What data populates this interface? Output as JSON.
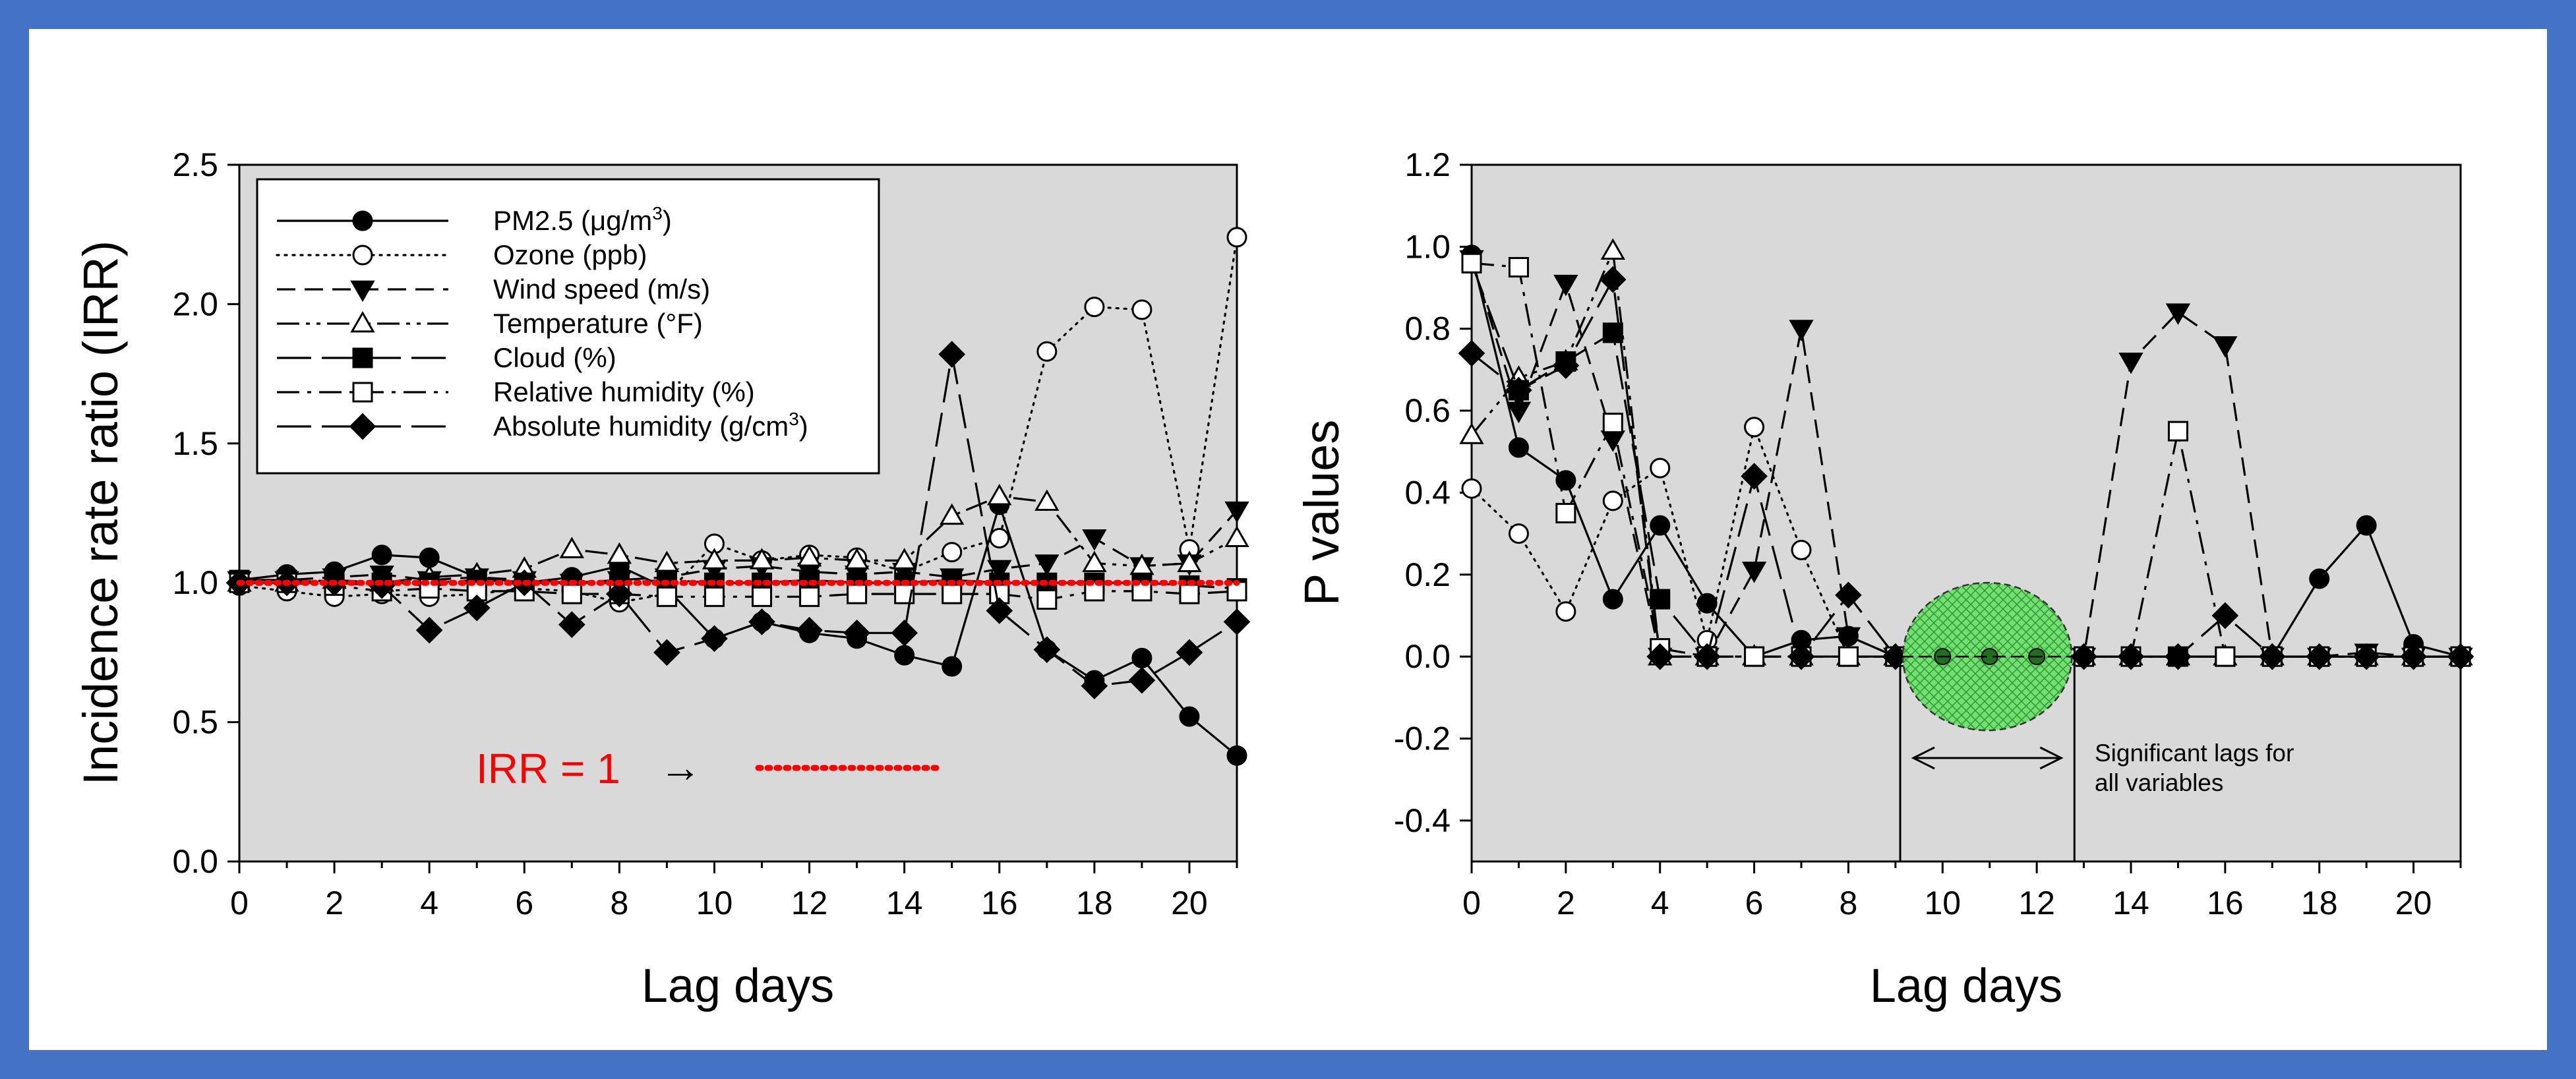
{
  "chart_data": [
    {
      "type": "line",
      "xlabel": "Lag days",
      "ylabel": "Incidence rate ratio (IRR)",
      "xlim": [
        0,
        21
      ],
      "ylim": [
        0,
        2.5
      ],
      "x_ticks": [
        0,
        2,
        4,
        6,
        8,
        10,
        12,
        14,
        16,
        18,
        20
      ],
      "y_ticks": [
        0.0,
        0.5,
        1.0,
        1.5,
        2.0,
        2.5
      ],
      "grid": false,
      "legend_position": "top-left",
      "x": [
        0,
        1,
        2,
        3,
        4,
        5,
        6,
        7,
        8,
        9,
        10,
        11,
        12,
        13,
        14,
        15,
        16,
        17,
        18,
        19,
        20,
        21
      ],
      "series": [
        {
          "name_main": "PM2.5 (μg/m",
          "name_sup": "3",
          "name_end": ")",
          "marker": "filled-circle",
          "dash": "solid",
          "values": [
            1.01,
            1.03,
            1.04,
            1.1,
            1.09,
            1.02,
            1.0,
            1.02,
            1.06,
            0.98,
            0.8,
            0.86,
            0.82,
            0.8,
            0.74,
            0.7,
            1.28,
            0.76,
            0.65,
            0.73,
            0.52,
            0.38
          ]
        },
        {
          "name_main": "Ozone (ppb)",
          "marker": "open-circle",
          "dash": "dotted",
          "values": [
            0.99,
            0.97,
            0.95,
            0.96,
            0.95,
            0.96,
            0.98,
            0.97,
            0.93,
            0.96,
            1.14,
            1.08,
            1.1,
            1.09,
            1.04,
            1.11,
            1.16,
            1.83,
            1.99,
            1.98,
            1.12,
            2.24
          ]
        },
        {
          "name_main": "Wind speed (m/s)",
          "marker": "filled-triangle-down",
          "dash": "dashed",
          "values": [
            1.01,
            1.01,
            1.02,
            1.03,
            1.01,
            1.02,
            1.01,
            1.0,
            1.01,
            1.02,
            1.05,
            1.06,
            1.04,
            1.03,
            1.04,
            1.02,
            1.05,
            1.07,
            1.16,
            1.06,
            1.07,
            1.26
          ]
        },
        {
          "name_main": "Temperature (°F)",
          "marker": "open-triangle-up",
          "dash": "dash-dot-dot",
          "values": [
            1.0,
            1.0,
            1.01,
            1.0,
            1.02,
            1.03,
            1.05,
            1.12,
            1.1,
            1.07,
            1.08,
            1.08,
            1.09,
            1.08,
            1.08,
            1.24,
            1.31,
            1.29,
            1.07,
            1.06,
            1.07,
            1.16
          ]
        },
        {
          "name_main": "Cloud (%)",
          "marker": "filled-square",
          "dash": "long-dash",
          "values": [
            1.01,
            1.01,
            1.0,
            1.0,
            1.0,
            1.01,
            1.0,
            1.0,
            1.0,
            1.01,
            1.0,
            1.0,
            1.01,
            1.0,
            1.0,
            1.01,
            1.0,
            1.0,
            1.0,
            1.0,
            0.99,
            0.98
          ]
        },
        {
          "name_main": "Relative humidity (%)",
          "marker": "open-square",
          "dash": "dash-dot",
          "values": [
            1.0,
            1.0,
            0.99,
            0.97,
            0.98,
            0.97,
            0.97,
            0.96,
            0.96,
            0.95,
            0.95,
            0.95,
            0.95,
            0.96,
            0.96,
            0.96,
            0.96,
            0.94,
            0.97,
            0.97,
            0.96,
            0.97
          ]
        },
        {
          "name_main": "Absolute humidity (g/cm",
          "name_sup": "3",
          "name_end": ")",
          "marker": "filled-diamond",
          "dash": "long-dash",
          "values": [
            1.0,
            1.0,
            1.0,
            0.99,
            0.83,
            0.91,
            1.0,
            0.85,
            0.96,
            0.75,
            0.8,
            0.86,
            0.83,
            0.82,
            0.82,
            1.82,
            0.9,
            0.76,
            0.63,
            0.65,
            0.75,
            0.86
          ]
        }
      ],
      "reference_line": {
        "y": 1.0,
        "color": "#ff0000",
        "style": "dotted"
      },
      "annotations": {
        "irr_label": "IRR = 1",
        "arrow_symbol": "→"
      }
    },
    {
      "type": "line",
      "xlabel": "Lag days",
      "ylabel": "P values",
      "xlim": [
        0,
        21
      ],
      "ylim": [
        -0.5,
        1.2
      ],
      "x_ticks": [
        0,
        2,
        4,
        6,
        8,
        10,
        12,
        14,
        16,
        18,
        20
      ],
      "y_ticks": [
        -0.4,
        -0.2,
        0.0,
        0.2,
        0.4,
        0.6,
        0.8,
        1.0,
        1.2
      ],
      "grid": false,
      "x": [
        0,
        1,
        2,
        3,
        4,
        5,
        6,
        7,
        8,
        9,
        10,
        11,
        12,
        13,
        14,
        15,
        16,
        17,
        18,
        19,
        20,
        21
      ],
      "series": [
        {
          "marker": "filled-circle",
          "dash": "solid",
          "values": [
            0.98,
            0.51,
            0.43,
            0.14,
            0.32,
            0.13,
            0.0,
            0.04,
            0.05,
            0.0,
            0.0,
            0.0,
            0.0,
            0.0,
            0.0,
            0.0,
            0.0,
            0.0,
            0.19,
            0.32,
            0.03,
            0.0
          ]
        },
        {
          "marker": "open-circle",
          "dash": "dotted",
          "values": [
            0.41,
            0.3,
            0.11,
            0.38,
            0.46,
            0.04,
            0.56,
            0.26,
            0.0,
            0.0,
            0.0,
            0.0,
            0.0,
            0.0,
            0.0,
            0.0,
            0.0,
            0.0,
            0.0,
            0.0,
            0.0,
            0.0
          ]
        },
        {
          "marker": "filled-triangle-down",
          "dash": "dashed",
          "values": [
            0.97,
            0.6,
            0.91,
            0.53,
            0.0,
            0.0,
            0.21,
            0.8,
            0.05,
            0.0,
            0.0,
            0.0,
            0.0,
            0.0,
            0.72,
            0.84,
            0.76,
            0.0,
            0.0,
            0.01,
            0.0,
            0.0
          ]
        },
        {
          "marker": "open-triangle-up",
          "dash": "dash-dot-dot",
          "values": [
            0.54,
            0.68,
            0.72,
            0.99,
            0.0,
            0.0,
            0.0,
            0.0,
            0.0,
            0.0,
            0.0,
            0.0,
            0.0,
            0.0,
            0.0,
            0.0,
            0.0,
            0.0,
            0.0,
            0.0,
            0.0,
            0.0
          ]
        },
        {
          "marker": "filled-square",
          "dash": "long-dash",
          "values": [
            0.96,
            0.65,
            0.72,
            0.79,
            0.14,
            0.0,
            0.0,
            0.0,
            0.0,
            0.0,
            0.0,
            0.0,
            0.0,
            0.0,
            0.0,
            0.0,
            0.0,
            0.0,
            0.0,
            0.0,
            0.0,
            0.0
          ]
        },
        {
          "marker": "open-square",
          "dash": "dash-dot",
          "values": [
            0.96,
            0.95,
            0.35,
            0.57,
            0.02,
            0.0,
            0.0,
            0.0,
            0.0,
            0.0,
            0.0,
            0.0,
            0.0,
            0.0,
            0.0,
            0.55,
            0.0,
            0.0,
            0.0,
            0.0,
            0.0,
            0.0
          ]
        },
        {
          "marker": "filled-diamond",
          "dash": "long-dash",
          "values": [
            0.74,
            0.65,
            0.71,
            0.92,
            0.0,
            0.0,
            0.44,
            0.0,
            0.15,
            0.0,
            0.0,
            0.0,
            0.0,
            0.0,
            0.0,
            0.0,
            0.1,
            0.0,
            0.0,
            0.0,
            0.0,
            0.0
          ]
        }
      ],
      "significant_region": {
        "x_start": 9.1,
        "x_end": 12.8,
        "ellipse_color": "#66dd66"
      },
      "annotations": {
        "significant_note_line1": "Significant lags for",
        "significant_note_line2": "all variables"
      }
    }
  ],
  "colors": {
    "border": "#4472c4",
    "plot_bg": "#d9d9d9",
    "irr_line": "#ff0000",
    "ellipse": "#66dd66"
  }
}
